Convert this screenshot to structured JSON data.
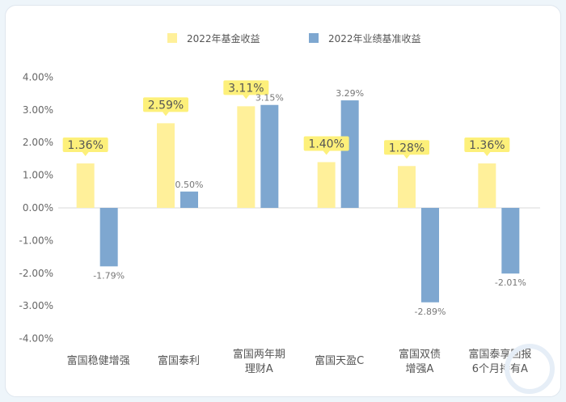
{
  "chart_data": {
    "type": "bar",
    "legend_position": "top-center",
    "series": [
      {
        "name": "2022年基金收益",
        "color": "#fff09a",
        "values": [
          1.36,
          2.59,
          3.11,
          1.4,
          1.28,
          1.36
        ]
      },
      {
        "name": "2022年业绩基准收益",
        "color": "#7ea7d0",
        "values": [
          -1.79,
          0.5,
          3.15,
          3.29,
          -2.89,
          -2.01
        ]
      }
    ],
    "categories": [
      [
        "富国稳健增强"
      ],
      [
        "富国泰利"
      ],
      [
        "富国两年期",
        "理财A"
      ],
      [
        "富国天盈C"
      ],
      [
        "富国双债",
        "增强A"
      ],
      [
        "富国泰享回报",
        "6个月持有A"
      ]
    ],
    "fund_labels": [
      "1.36%",
      "2.59%",
      "3.11%",
      "1.40%",
      "1.28%",
      "1.36%"
    ],
    "benchmark_labels": [
      "-1.79%",
      "0.50%",
      "3.15%",
      "3.29%",
      "-2.89%",
      "-2.01%"
    ],
    "yticks": [
      "4.00%",
      "3.00%",
      "2.00%",
      "1.00%",
      "0.00%",
      "-1.00%",
      "-2.00%",
      "-3.00%",
      "-4.00%"
    ],
    "ylim": [
      -4,
      4
    ],
    "highlight_color": "#fdf07a"
  }
}
